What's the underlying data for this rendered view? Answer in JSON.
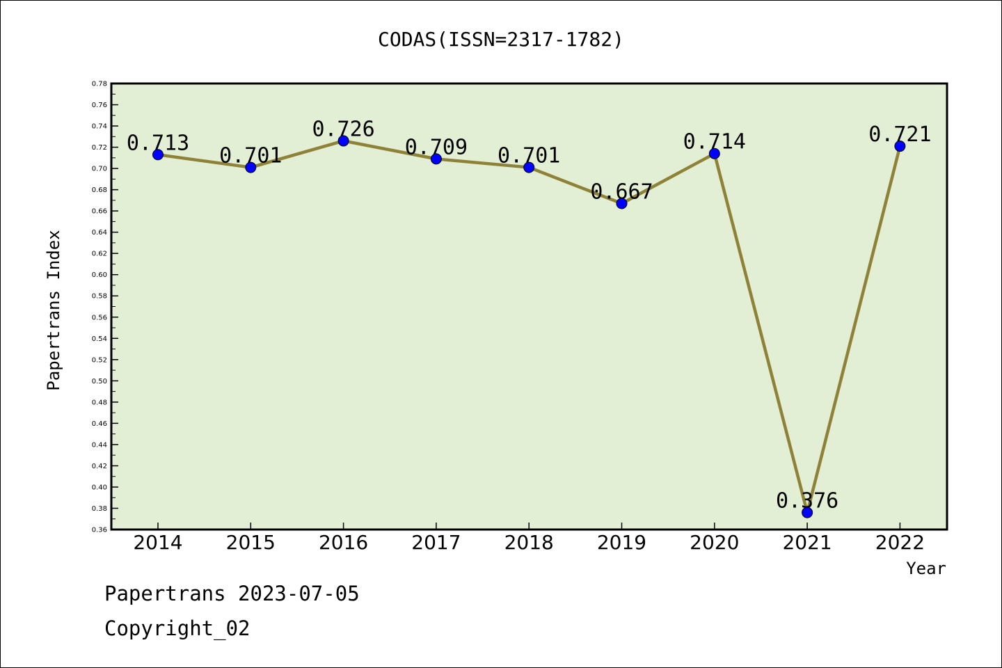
{
  "chart_data": {
    "type": "line",
    "title": "CODAS(ISSN=2317-1782)",
    "xlabel": "Year",
    "ylabel": "Papertrans Index",
    "categories": [
      "2014",
      "2015",
      "2016",
      "2017",
      "2018",
      "2019",
      "2020",
      "2021",
      "2022"
    ],
    "values": [
      0.713,
      0.701,
      0.726,
      0.709,
      0.701,
      0.667,
      0.714,
      0.376,
      0.721
    ],
    "data_labels": [
      "0.713",
      "0.701",
      "0.726",
      "0.709",
      "0.701",
      "0.667",
      "0.714",
      "0.376",
      "0.721"
    ],
    "ylim": [
      0.36,
      0.78
    ],
    "yticks": [
      "0.36",
      "0.38",
      "0.40",
      "0.42",
      "0.44",
      "0.46",
      "0.48",
      "0.50",
      "0.52",
      "0.54",
      "0.56",
      "0.58",
      "0.60",
      "0.62",
      "0.64",
      "0.66",
      "0.68",
      "0.70",
      "0.72",
      "0.74",
      "0.76",
      "0.78"
    ],
    "grid": false,
    "legend": "none",
    "colors": {
      "plot_background": "#e2efd4",
      "line": "#8e8238",
      "marker": "#0000ff"
    }
  },
  "footer": {
    "line1": "Papertrans 2023-07-05",
    "line2": "Copyright_02"
  }
}
